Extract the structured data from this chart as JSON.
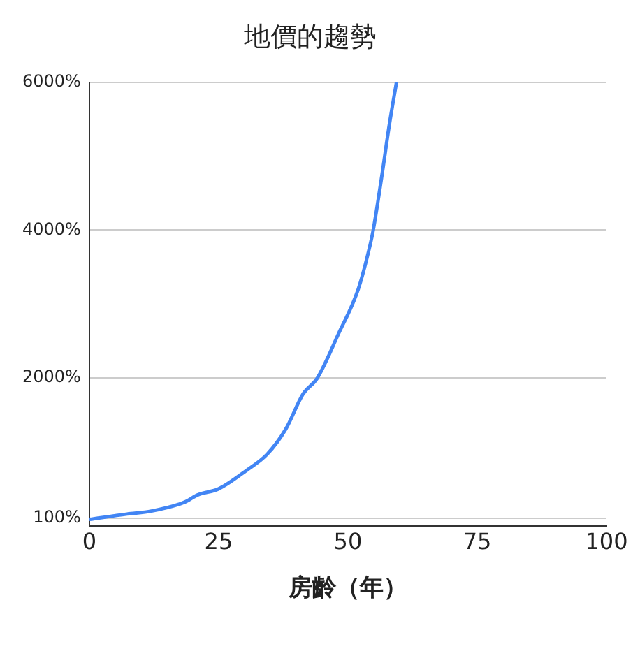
{
  "chart_data": {
    "type": "line",
    "title": "地價的趨勢",
    "xlabel": "房齡（年）",
    "x": [
      0,
      7.3,
      12,
      18.4,
      21,
      25,
      30.4,
      34.4,
      38,
      41.3,
      44.1,
      48.2,
      52,
      54.3,
      54.9,
      56.6,
      58,
      59.4
    ],
    "series": [
      {
        "color": "#4285f4",
        "values": [
          87,
          160,
          200,
          320,
          420,
          500,
          750,
          970,
          1310,
          1780,
          2000,
          2600,
          3200,
          3800,
          4000,
          4750,
          5420,
          6000
        ]
      }
    ],
    "xlim": [
      0,
      100
    ],
    "xticks": [
      0,
      25,
      50,
      75,
      100
    ],
    "ylim": [
      0,
      6000
    ],
    "yticks": [
      {
        "value": 100,
        "label": "100%"
      },
      {
        "value": 2000,
        "label": "2000%"
      },
      {
        "value": 4000,
        "label": "4000%"
      },
      {
        "value": 6000,
        "label": "6000%"
      }
    ],
    "grid": "y",
    "legend": false,
    "marker": "none",
    "line_style": "solid"
  }
}
